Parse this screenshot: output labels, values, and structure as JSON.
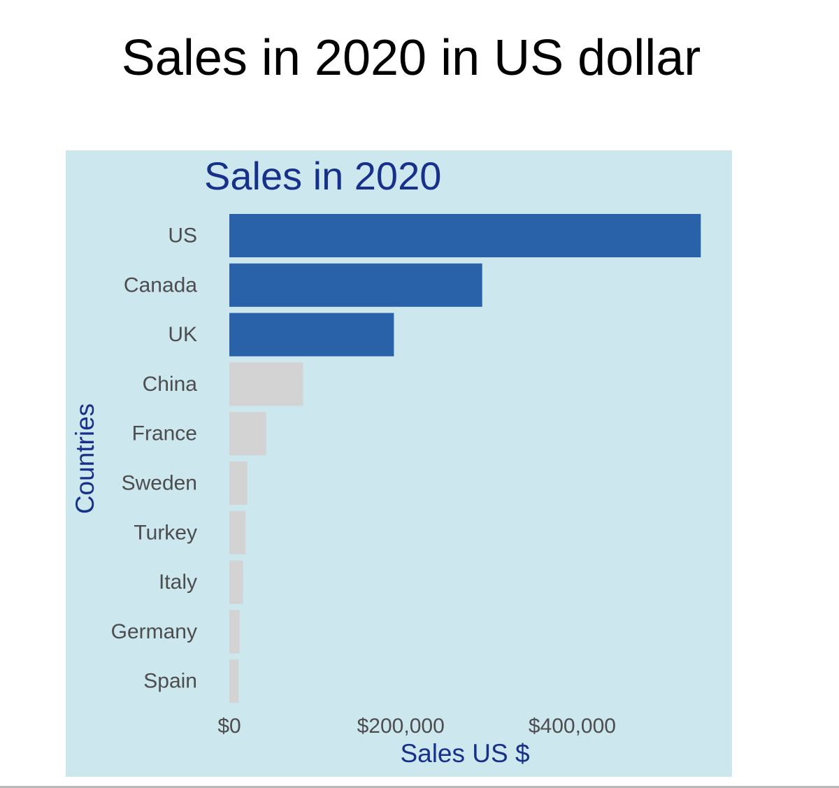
{
  "page": {
    "title": "Sales in 2020 in US dollar"
  },
  "chart_data": {
    "type": "bar",
    "orientation": "horizontal",
    "title": "Sales in 2020",
    "xlabel": "Sales US $",
    "ylabel": "Countries",
    "categories": [
      "US",
      "Canada",
      "UK",
      "China",
      "France",
      "Sweden",
      "Turkey",
      "Italy",
      "Germany",
      "Spain"
    ],
    "values": [
      550000,
      295000,
      192000,
      86000,
      43000,
      21000,
      19000,
      16000,
      12000,
      11000
    ],
    "highlighted": [
      true,
      true,
      true,
      false,
      false,
      false,
      false,
      false,
      false,
      false
    ],
    "x_ticks": [
      {
        "value": 0,
        "label": "$0"
      },
      {
        "value": 200000,
        "label": "$200,000"
      },
      {
        "value": 400000,
        "label": "$400,000"
      }
    ],
    "xlim": [
      0,
      570000
    ],
    "grid": false,
    "legend": "none",
    "colors": {
      "highlight": "#2a62aa",
      "muted": "#d3d3d3",
      "panel_background": "#cce7ee",
      "title": "#17318a",
      "axis_text": "#4d4d4d"
    }
  }
}
